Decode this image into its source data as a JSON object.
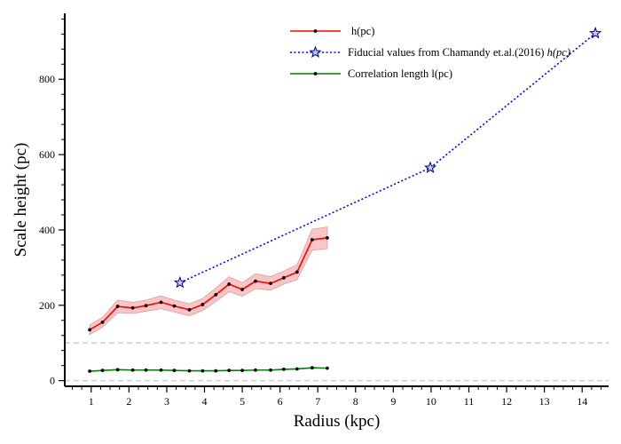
{
  "chart_data": {
    "type": "line",
    "xlabel": "Radius (kpc)",
    "ylabel": "Scale height (pc)",
    "xlim": [
      0.3,
      14.7
    ],
    "ylim": [
      -15,
      975
    ],
    "x_ticks": [
      1,
      2,
      3,
      4,
      5,
      6,
      7,
      8,
      9,
      10,
      11,
      12,
      13,
      14
    ],
    "y_ticks": [
      0,
      200,
      400,
      600,
      800
    ],
    "grid": false,
    "legend_placement": "top-center",
    "reference_lines": [
      {
        "y": 0,
        "style": "dashed",
        "color": "#c8c8c8"
      },
      {
        "y": 100,
        "style": "dashed",
        "color": "#c8c8c8"
      }
    ],
    "series": [
      {
        "name": "h(pc)",
        "legend_label": "h(pc)",
        "color": "#ff0000",
        "marker": "dot",
        "band_color": "#f08080",
        "x": [
          0.96,
          1.3,
          1.7,
          2.1,
          2.45,
          2.85,
          3.2,
          3.6,
          3.95,
          4.3,
          4.65,
          5.0,
          5.35,
          5.75,
          6.1,
          6.45,
          6.85,
          7.25
        ],
        "values": [
          135,
          155,
          197,
          193,
          199,
          208,
          198,
          188,
          202,
          228,
          256,
          242,
          264,
          258,
          273,
          288,
          374,
          379
        ],
        "band": [
          [
            122,
            148
          ],
          [
            142,
            168
          ],
          [
            180,
            214
          ],
          [
            178,
            208
          ],
          [
            184,
            214
          ],
          [
            191,
            225
          ],
          [
            182,
            214
          ],
          [
            172,
            204
          ],
          [
            186,
            218
          ],
          [
            210,
            246
          ],
          [
            236,
            276
          ],
          [
            224,
            260
          ],
          [
            244,
            284
          ],
          [
            240,
            276
          ],
          [
            256,
            291
          ],
          [
            268,
            308
          ],
          [
            346,
            402
          ],
          [
            350,
            408
          ]
        ]
      },
      {
        "name": "Fiducial values from Chamandy et.al.(2016) h(pc)",
        "legend_label_plain": "Fiducial values from Chamandy et.al.(2016) ",
        "legend_label_math": "h(pc)",
        "color": "#0000ff",
        "marker": "star",
        "line_style": "dotted",
        "x": [
          3.35,
          9.98,
          14.35
        ],
        "values": [
          260,
          565,
          922
        ]
      },
      {
        "name": "Correlation length l(pc)",
        "legend_label": "Correlation length l(pc)",
        "color": "#008000",
        "marker": "dot",
        "x": [
          0.96,
          1.3,
          1.7,
          2.1,
          2.45,
          2.85,
          3.2,
          3.6,
          3.95,
          4.3,
          4.65,
          5.0,
          5.35,
          5.75,
          6.1,
          6.45,
          6.85,
          7.25
        ],
        "values": [
          25,
          27,
          29,
          28,
          28,
          28,
          27,
          26,
          26,
          26,
          27,
          27,
          28,
          28,
          30,
          31,
          34,
          33
        ]
      }
    ]
  }
}
